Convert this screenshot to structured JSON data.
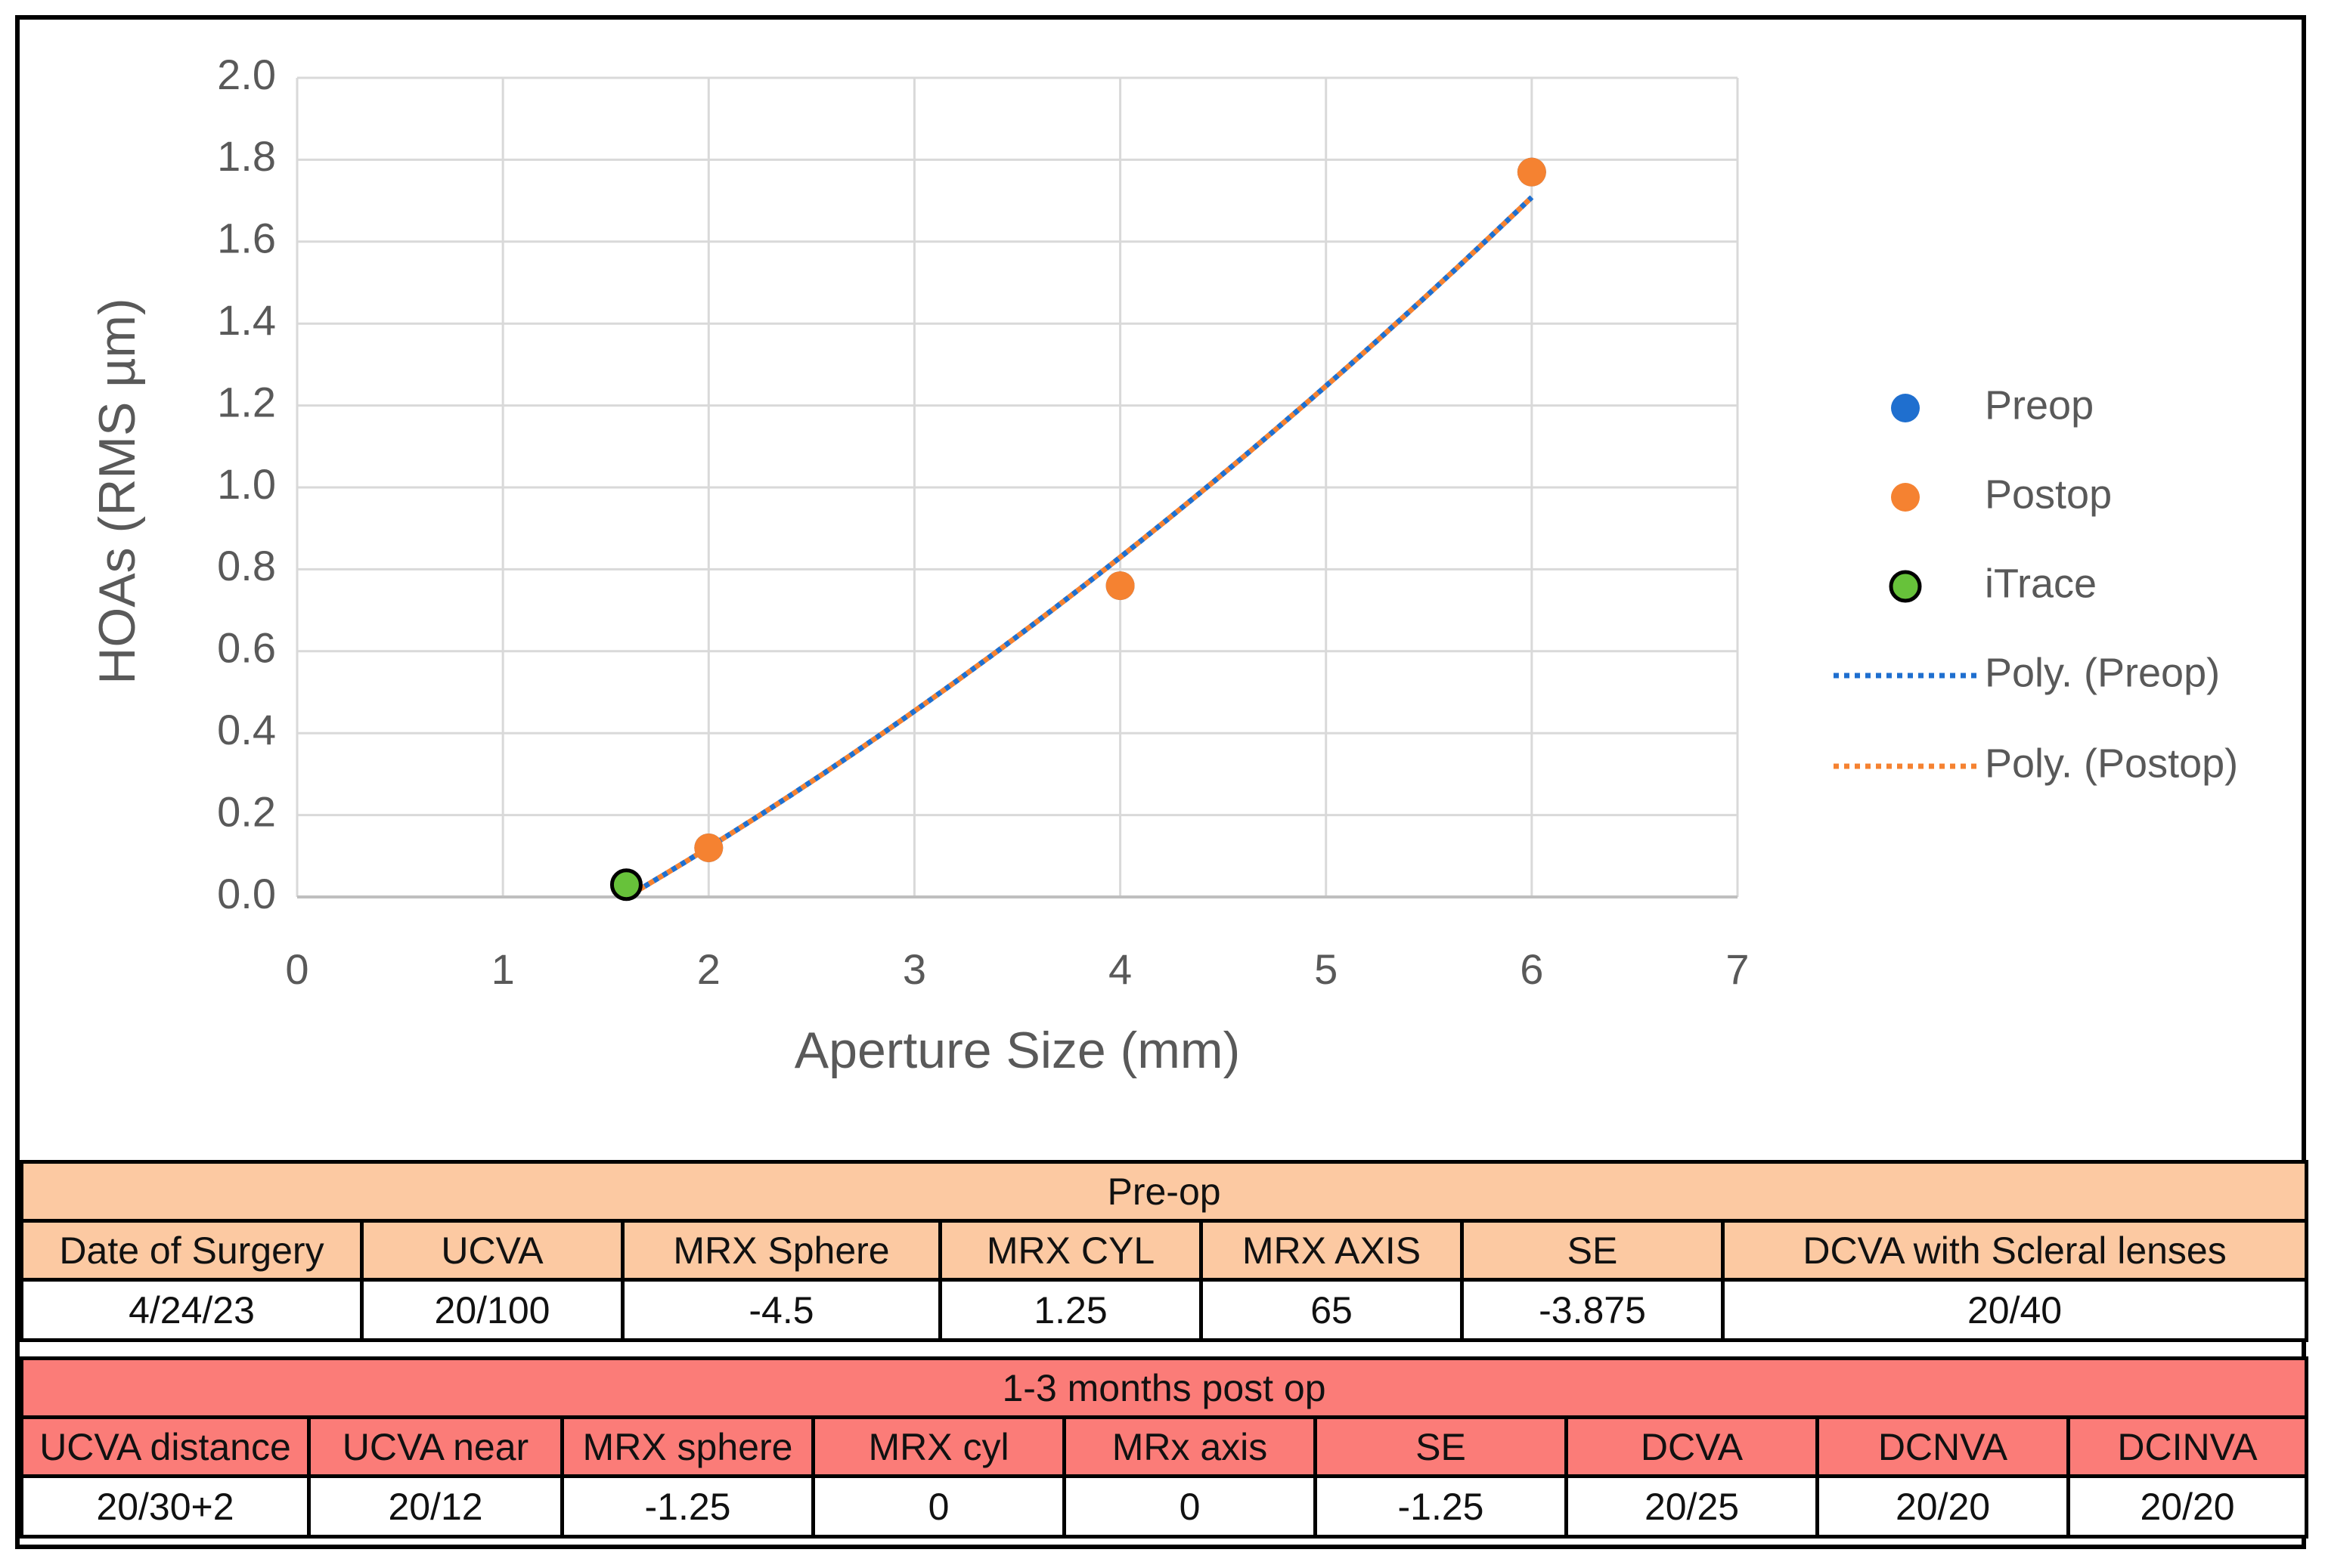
{
  "chart_data": {
    "type": "scatter",
    "xlabel": "Aperture Size (mm)",
    "ylabel": "HOAs (RMS µm)",
    "xlim": [
      0,
      7
    ],
    "ylim": [
      0,
      2.0
    ],
    "x_ticks": [
      "0",
      "1",
      "2",
      "3",
      "4",
      "5",
      "6",
      "7"
    ],
    "y_ticks": [
      "0.0",
      "0.2",
      "0.4",
      "0.6",
      "0.8",
      "1.0",
      "1.2",
      "1.4",
      "1.6",
      "1.8",
      "2.0"
    ],
    "grid": true,
    "legend_position": "right",
    "series": [
      {
        "name": "Preop",
        "kind": "points",
        "color": "#1f6fcf",
        "x": [
          2,
          4,
          6
        ],
        "y": [
          0.12,
          0.76,
          1.77
        ]
      },
      {
        "name": "Postop",
        "kind": "points",
        "color": "#f58231",
        "x": [
          2,
          4,
          6
        ],
        "y": [
          0.12,
          0.76,
          1.77
        ]
      },
      {
        "name": "iTrace",
        "kind": "points",
        "color": "#67c23a",
        "edge": "#000000",
        "x": [
          1.6
        ],
        "y": [
          0.03
        ]
      },
      {
        "name": "Poly. (Preop)",
        "kind": "trend",
        "color": "#1f6fcf",
        "coef": [
          0.0213,
          0.2265,
          -0.4173
        ],
        "range": [
          1.6,
          6
        ]
      },
      {
        "name": "Poly. (Postop)",
        "kind": "trend",
        "color": "#f58231",
        "coef": [
          0.0213,
          0.2265,
          -0.4173
        ],
        "range": [
          1.6,
          6
        ]
      }
    ]
  },
  "preop_table": {
    "title": "Pre-op",
    "headers": [
      "Date of Surgery",
      "UCVA",
      "MRX Sphere",
      "MRX CYL",
      "MRX AXIS",
      "SE",
      "DCVA with Scleral lenses"
    ],
    "values": [
      "4/24/23",
      "20/100",
      "-4.5",
      "1.25",
      "65",
      "-3.875",
      "20/40"
    ]
  },
  "postop_table": {
    "title": "1-3 months post op",
    "headers": [
      "UCVA distance",
      "UCVA near",
      "MRX sphere",
      "MRX cyl",
      "MRx axis",
      "SE",
      "DCVA",
      "DCNVA",
      "DCINVA"
    ],
    "values": [
      "20/30+2",
      "20/12",
      "-1.25",
      "0",
      "0",
      "-1.25",
      "20/25",
      "20/20",
      "20/20"
    ]
  }
}
